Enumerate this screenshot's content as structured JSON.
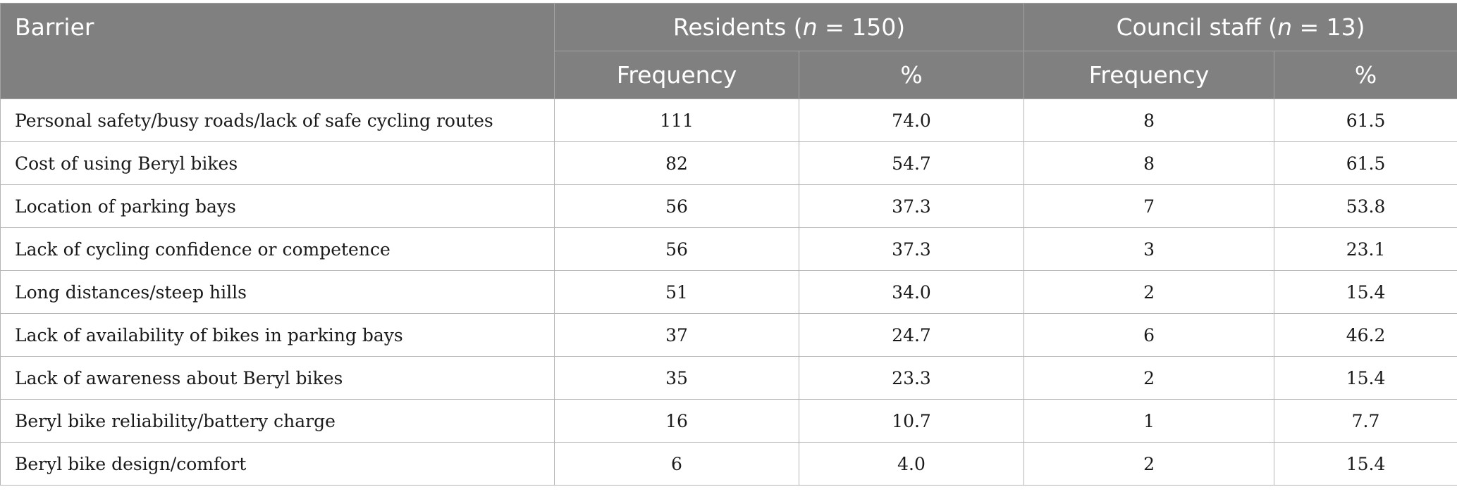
{
  "table": {
    "header": {
      "barrier": "Barrier",
      "residents_prefix": "Residents (",
      "residents_n": "n",
      "residents_suffix": " = 150)",
      "council_prefix": "Council staff (",
      "council_n": "n",
      "council_suffix": " = 13)",
      "sub": [
        "Frequency",
        "%",
        "Frequency",
        "%"
      ]
    },
    "rows": [
      {
        "barrier": "Personal safety/busy roads/lack of safe cycling routes",
        "res_freq": "111",
        "res_pct": "74.0",
        "cs_freq": "8",
        "cs_pct": "61.5"
      },
      {
        "barrier": "Cost of using Beryl bikes",
        "res_freq": "82",
        "res_pct": "54.7",
        "cs_freq": "8",
        "cs_pct": "61.5"
      },
      {
        "barrier": "Location of parking bays",
        "res_freq": "56",
        "res_pct": "37.3",
        "cs_freq": "7",
        "cs_pct": "53.8"
      },
      {
        "barrier": "Lack of cycling confidence or competence",
        "res_freq": "56",
        "res_pct": "37.3",
        "cs_freq": "3",
        "cs_pct": "23.1"
      },
      {
        "barrier": "Long distances/steep hills",
        "res_freq": "51",
        "res_pct": "34.0",
        "cs_freq": "2",
        "cs_pct": "15.4"
      },
      {
        "barrier": "Lack of availability of bikes in parking bays",
        "res_freq": "37",
        "res_pct": "24.7",
        "cs_freq": "6",
        "cs_pct": "46.2"
      },
      {
        "barrier": "Lack of awareness about Beryl bikes",
        "res_freq": "35",
        "res_pct": "23.3",
        "cs_freq": "2",
        "cs_pct": "15.4"
      },
      {
        "barrier": "Beryl bike reliability/battery charge",
        "res_freq": "16",
        "res_pct": "10.7",
        "cs_freq": "1",
        "cs_pct": "7.7"
      },
      {
        "barrier": "Beryl bike design/comfort",
        "res_freq": "6",
        "res_pct": "4.0",
        "cs_freq": "2",
        "cs_pct": "15.4"
      }
    ]
  }
}
